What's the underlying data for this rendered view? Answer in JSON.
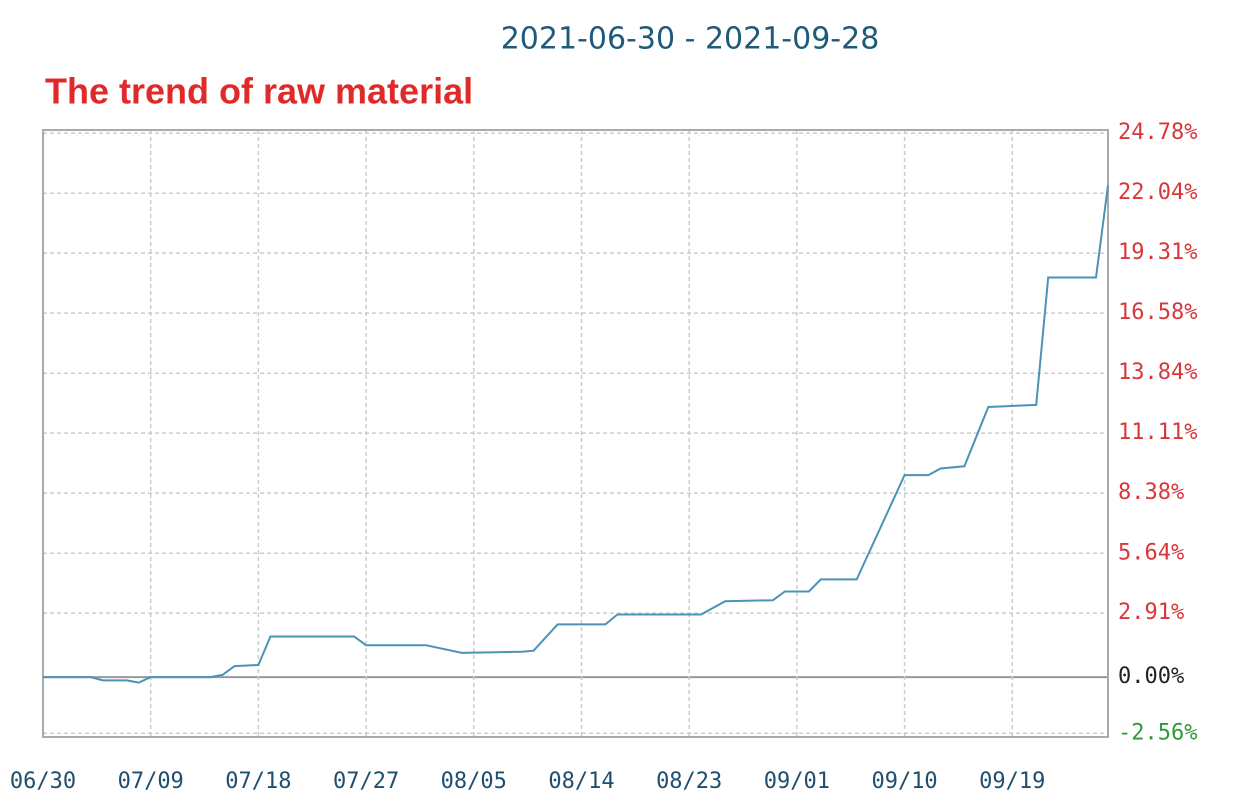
{
  "chart_data": {
    "type": "line",
    "title": "2021-06-30 - 2021-09-28",
    "subtitle": "The trend of raw material",
    "x": [
      "06/30",
      "07/04",
      "07/05",
      "07/07",
      "07/08",
      "07/09",
      "07/14",
      "07/15",
      "07/16",
      "07/18",
      "07/19",
      "07/26",
      "07/27",
      "08/01",
      "08/04",
      "08/09",
      "08/10",
      "08/12",
      "08/16",
      "08/17",
      "08/24",
      "08/26",
      "08/30",
      "08/31",
      "09/02",
      "09/03",
      "09/06",
      "09/10",
      "09/12",
      "09/13",
      "09/15",
      "09/17",
      "09/21",
      "09/22",
      "09/26",
      "09/27"
    ],
    "values": [
      0,
      0,
      -0.15,
      -0.15,
      -0.25,
      0,
      0,
      0.1,
      0.5,
      0.55,
      1.85,
      1.85,
      1.45,
      1.45,
      1.1,
      1.15,
      1.2,
      2.4,
      2.4,
      2.85,
      2.85,
      3.45,
      3.5,
      3.9,
      3.9,
      4.45,
      4.45,
      9.2,
      9.2,
      9.5,
      9.6,
      12.3,
      12.4,
      18.2,
      18.2,
      22.4
    ],
    "color": "#4a93b5",
    "xlim": [
      "06/30",
      "09/27"
    ],
    "xticks": [
      "06/30",
      "07/09",
      "07/18",
      "07/27",
      "08/05",
      "08/14",
      "08/23",
      "09/01",
      "09/10",
      "09/19"
    ],
    "ylim": [
      -2.73,
      24.92
    ],
    "yticks": [
      {
        "value": -2.56,
        "label": "-2.56%"
      },
      {
        "value": 0,
        "label": "0.00%"
      },
      {
        "value": 2.91,
        "label": "2.91%"
      },
      {
        "value": 5.64,
        "label": "5.64%"
      },
      {
        "value": 8.38,
        "label": "8.38%"
      },
      {
        "value": 11.11,
        "label": "11.11%"
      },
      {
        "value": 13.84,
        "label": "13.84%"
      },
      {
        "value": 16.58,
        "label": "16.58%"
      },
      {
        "value": 19.31,
        "label": "19.31%"
      },
      {
        "value": 22.04,
        "label": "22.04%"
      },
      {
        "value": 24.78,
        "label": "24.78%"
      }
    ],
    "grid": true
  }
}
